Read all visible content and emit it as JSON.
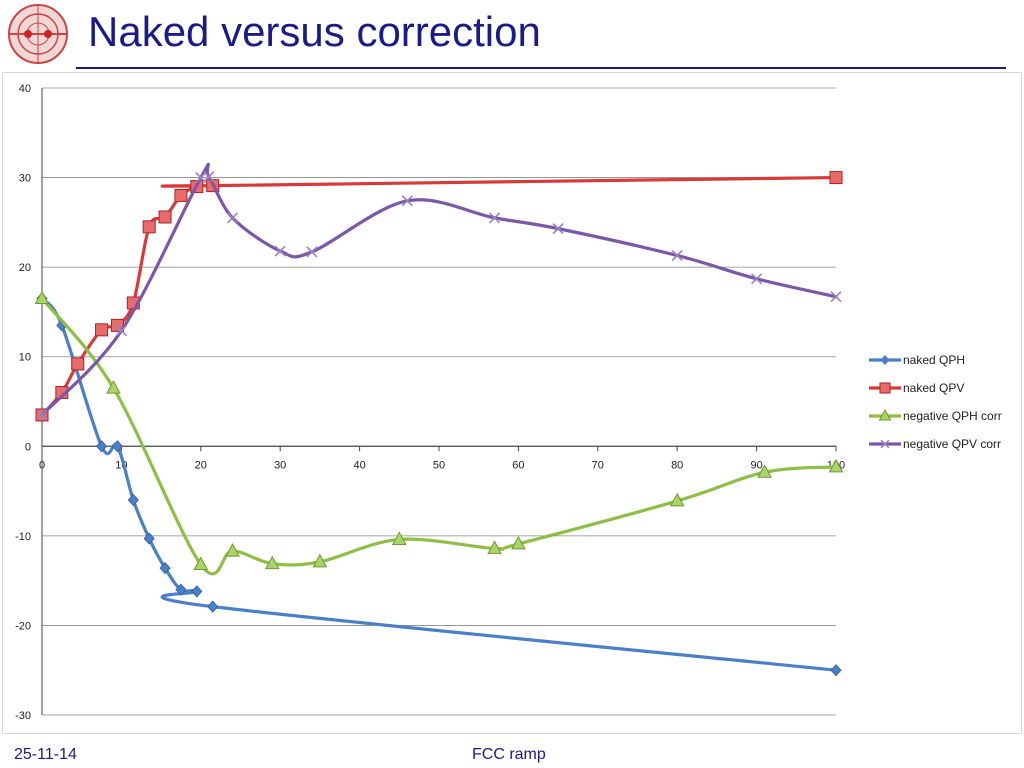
{
  "slide": {
    "title": "Naked versus correction",
    "footer_date": "25-11-14",
    "footer_center": "FCC ramp"
  },
  "colors": {
    "title": "#1a1a8c",
    "naked_qph": "#4a7fc9",
    "naked_qpv": "#d83a3a",
    "negative_qph_corr": "#8dbf45",
    "negative_qpv_corr": "#7a57a8"
  },
  "chart_data": {
    "type": "scatter",
    "title": "",
    "xlabel": "",
    "ylabel": "",
    "xlim": [
      0,
      100
    ],
    "ylim": [
      -30,
      40
    ],
    "x_ticks": [
      0,
      10,
      20,
      30,
      40,
      50,
      60,
      70,
      80,
      90,
      100
    ],
    "y_ticks": [
      40,
      30,
      20,
      10,
      0,
      -10,
      -20,
      -30
    ],
    "grid": true,
    "legend_position": "right",
    "series": [
      {
        "name": "naked QPH",
        "marker": "diamond",
        "points": [
          [
            0,
            16.5
          ],
          [
            2.5,
            13.5
          ],
          [
            7.5,
            0
          ],
          [
            9.5,
            0
          ],
          [
            11.5,
            -6
          ],
          [
            13.5,
            -10.3
          ],
          [
            15.5,
            -13.6
          ],
          [
            17.5,
            -16
          ],
          [
            19.5,
            -16.2
          ],
          [
            21.5,
            -17.9
          ],
          [
            100,
            -25
          ]
        ]
      },
      {
        "name": "naked QPV",
        "marker": "square",
        "points": [
          [
            0,
            3.5
          ],
          [
            2.5,
            6
          ],
          [
            4.5,
            9.2
          ],
          [
            7.5,
            13
          ],
          [
            9.5,
            13.5
          ],
          [
            11.5,
            16
          ],
          [
            13.5,
            24.5
          ],
          [
            15.5,
            25.6
          ],
          [
            17.5,
            28
          ],
          [
            19.5,
            29
          ],
          [
            21.5,
            29.1
          ],
          [
            100,
            30
          ]
        ]
      },
      {
        "name": "negative QPH corr",
        "marker": "triangle",
        "points": [
          [
            0,
            16.5
          ],
          [
            9,
            6.5
          ],
          [
            20,
            -13.2
          ],
          [
            24,
            -11.7
          ],
          [
            29,
            -13.1
          ],
          [
            35,
            -12.9
          ],
          [
            45,
            -10.4
          ],
          [
            57,
            -11.4
          ],
          [
            60,
            -10.9
          ],
          [
            80,
            -6.1
          ],
          [
            91,
            -2.9
          ],
          [
            100,
            -2.3
          ]
        ]
      },
      {
        "name": "negative QPV corr",
        "marker": "x",
        "points": [
          [
            0,
            3.5
          ],
          [
            10,
            12.9
          ],
          [
            20,
            30
          ],
          [
            21,
            30.1
          ],
          [
            24,
            25.5
          ],
          [
            30,
            21.8
          ],
          [
            34,
            21.7
          ],
          [
            46,
            27.4
          ],
          [
            57,
            25.5
          ],
          [
            65,
            24.3
          ],
          [
            80,
            21.3
          ],
          [
            90,
            18.7
          ],
          [
            100,
            16.7
          ]
        ]
      }
    ]
  }
}
